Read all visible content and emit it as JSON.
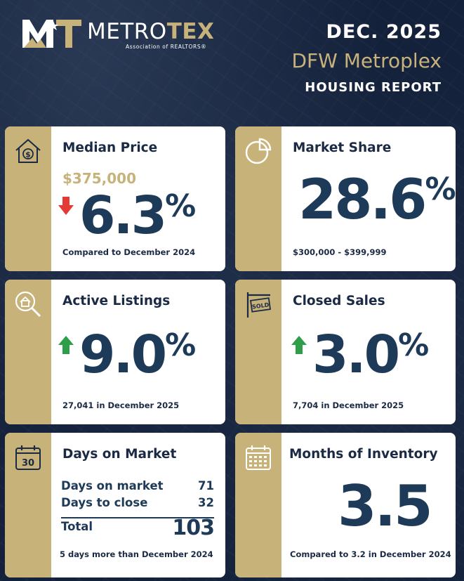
{
  "header": {
    "logo_prefix": "METRO",
    "logo_suffix": "TEX",
    "logo_subtitle": "Association of REALTORS®",
    "date": "DEC. 2025",
    "region": "DFW Metroplex",
    "report": "HOUSING REPORT"
  },
  "cards": {
    "median_price": {
      "icon": "house-dollar-icon",
      "title": "Median Price",
      "price": "$375,000",
      "change": "6.3",
      "unit": "%",
      "direction": "down",
      "note": "Compared to December 2024"
    },
    "market_share": {
      "icon": "pie-chart-icon",
      "title": "Market Share",
      "value": "28.6",
      "unit": "%",
      "note": "$300,000 - $399,999"
    },
    "active_listings": {
      "icon": "house-search-icon",
      "title": "Active Listings",
      "change": "9.0",
      "unit": "%",
      "direction": "up",
      "note": "27,041 in December 2025"
    },
    "closed_sales": {
      "icon": "sold-sign-icon",
      "title": "Closed Sales",
      "change": "3.0",
      "unit": "%",
      "direction": "up",
      "note": "7,704 in December 2025"
    },
    "days_on_market": {
      "icon": "calendar-30-icon",
      "icon_text": "30",
      "title": "Days on Market",
      "rows": [
        {
          "label": "Days on market",
          "value": "71"
        },
        {
          "label": "Days to close",
          "value": "32"
        }
      ],
      "total_label": "Total",
      "total_value": "103",
      "note": "5 days more than December 2024"
    },
    "months_inventory": {
      "icon": "calendar-grid-icon",
      "title": "Months of Inventory",
      "value": "3.5",
      "note": "Compared to 3.2 in December 2024"
    }
  },
  "colors": {
    "navy": "#14213b",
    "gold": "#c7b27a",
    "value": "#1d3a58",
    "arrow_down": "#e53935",
    "arrow_up": "#2e9e48"
  }
}
